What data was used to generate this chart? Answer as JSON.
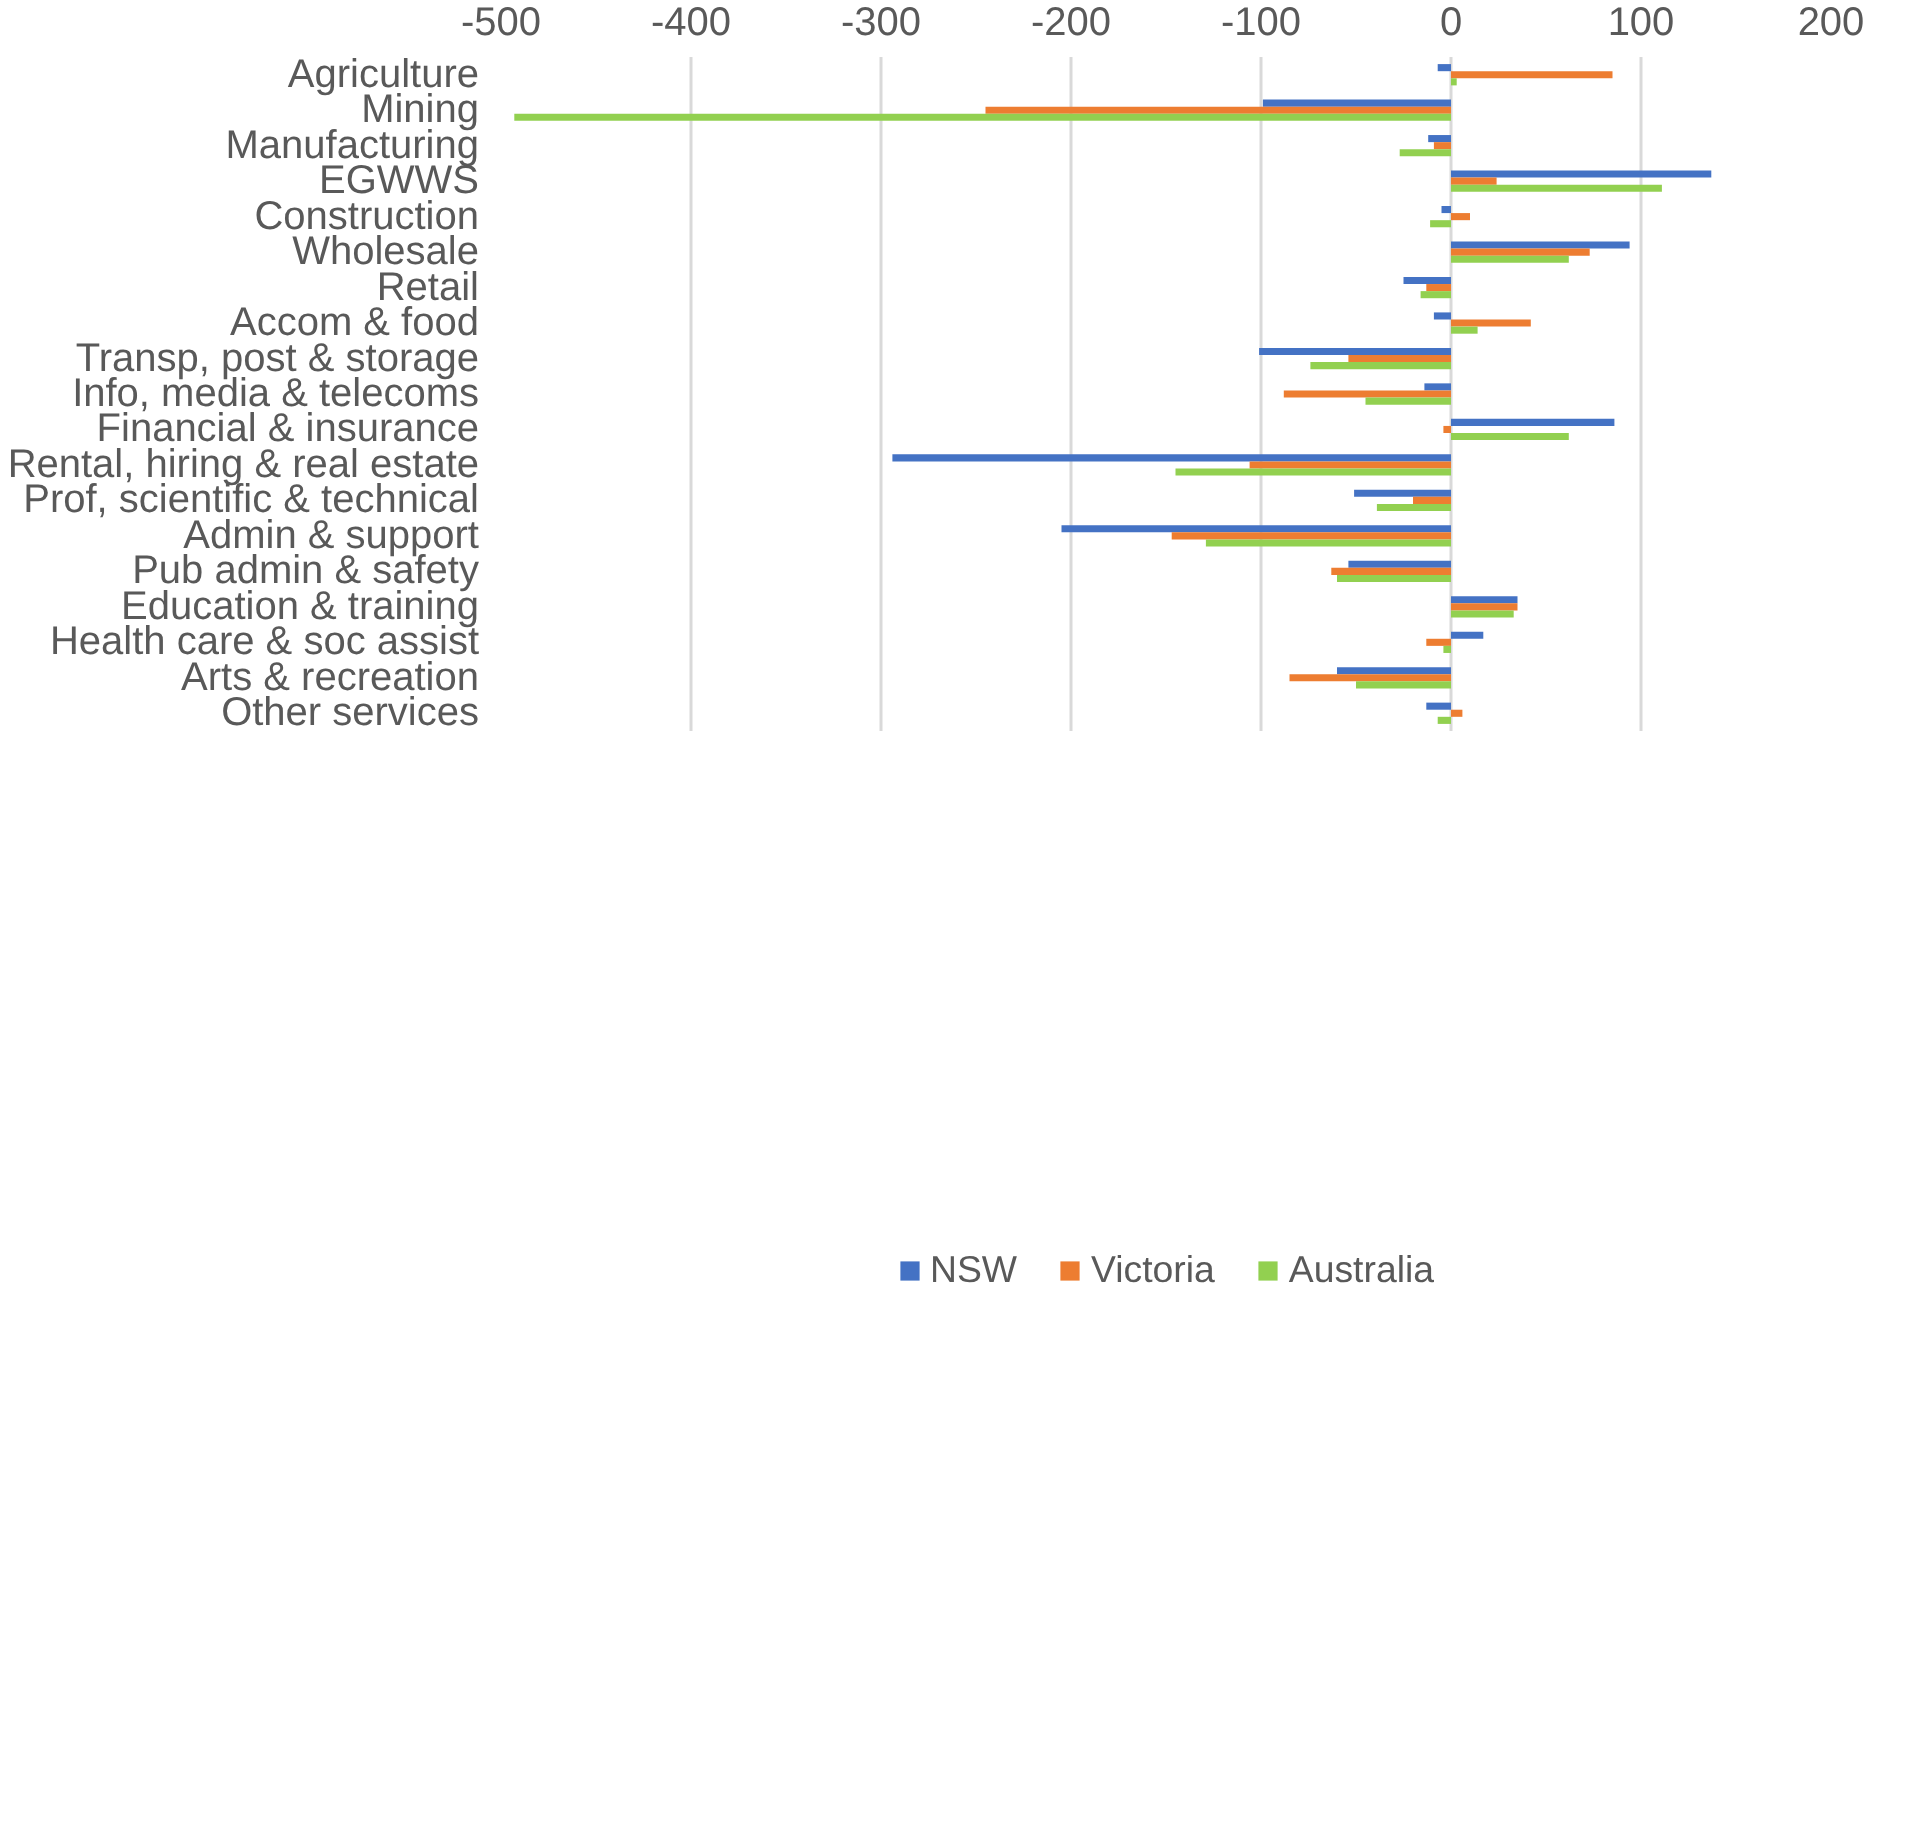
{
  "chart_data": {
    "type": "bar",
    "orientation": "horizontal",
    "categories": [
      "Agriculture",
      "Mining",
      "Manufacturing",
      "EGWWS",
      "Construction",
      "Wholesale",
      "Retail",
      "Accom & food",
      "Transp, post & storage",
      "Info, media & telecoms",
      "Financial & insurance",
      "Rental, hiring & real estate",
      "Prof, scientific & technical",
      "Admin & support",
      "Pub admin & safety",
      "Education & training",
      "Health care & soc assist",
      "Arts & recreation",
      "Other services"
    ],
    "series": [
      {
        "name": "NSW",
        "color": "#4472c4",
        "values": [
          -7,
          -99,
          -12,
          137,
          -5,
          94,
          -25,
          -9,
          -101,
          -14,
          86,
          -294,
          -51,
          -205,
          -54,
          35,
          17,
          -60,
          -13
        ]
      },
      {
        "name": "Victoria",
        "color": "#ed7d31",
        "values": [
          85,
          -245,
          -9,
          24,
          10,
          73,
          -13,
          42,
          -54,
          -88,
          -4,
          -106,
          -20,
          -147,
          -63,
          35,
          -13,
          -85,
          6
        ]
      },
      {
        "name": "Australia",
        "color": "#92d050",
        "values": [
          3,
          -493,
          -27,
          111,
          -11,
          62,
          -16,
          14,
          -74,
          -45,
          62,
          -145,
          -39,
          -129,
          -60,
          33,
          -4,
          -50,
          -7
        ]
      }
    ],
    "xlim": [
      -500,
      200
    ],
    "xticks": [
      -500,
      -400,
      -300,
      -200,
      -100,
      0,
      100,
      200
    ],
    "grid": "x",
    "legend": "bottom"
  }
}
